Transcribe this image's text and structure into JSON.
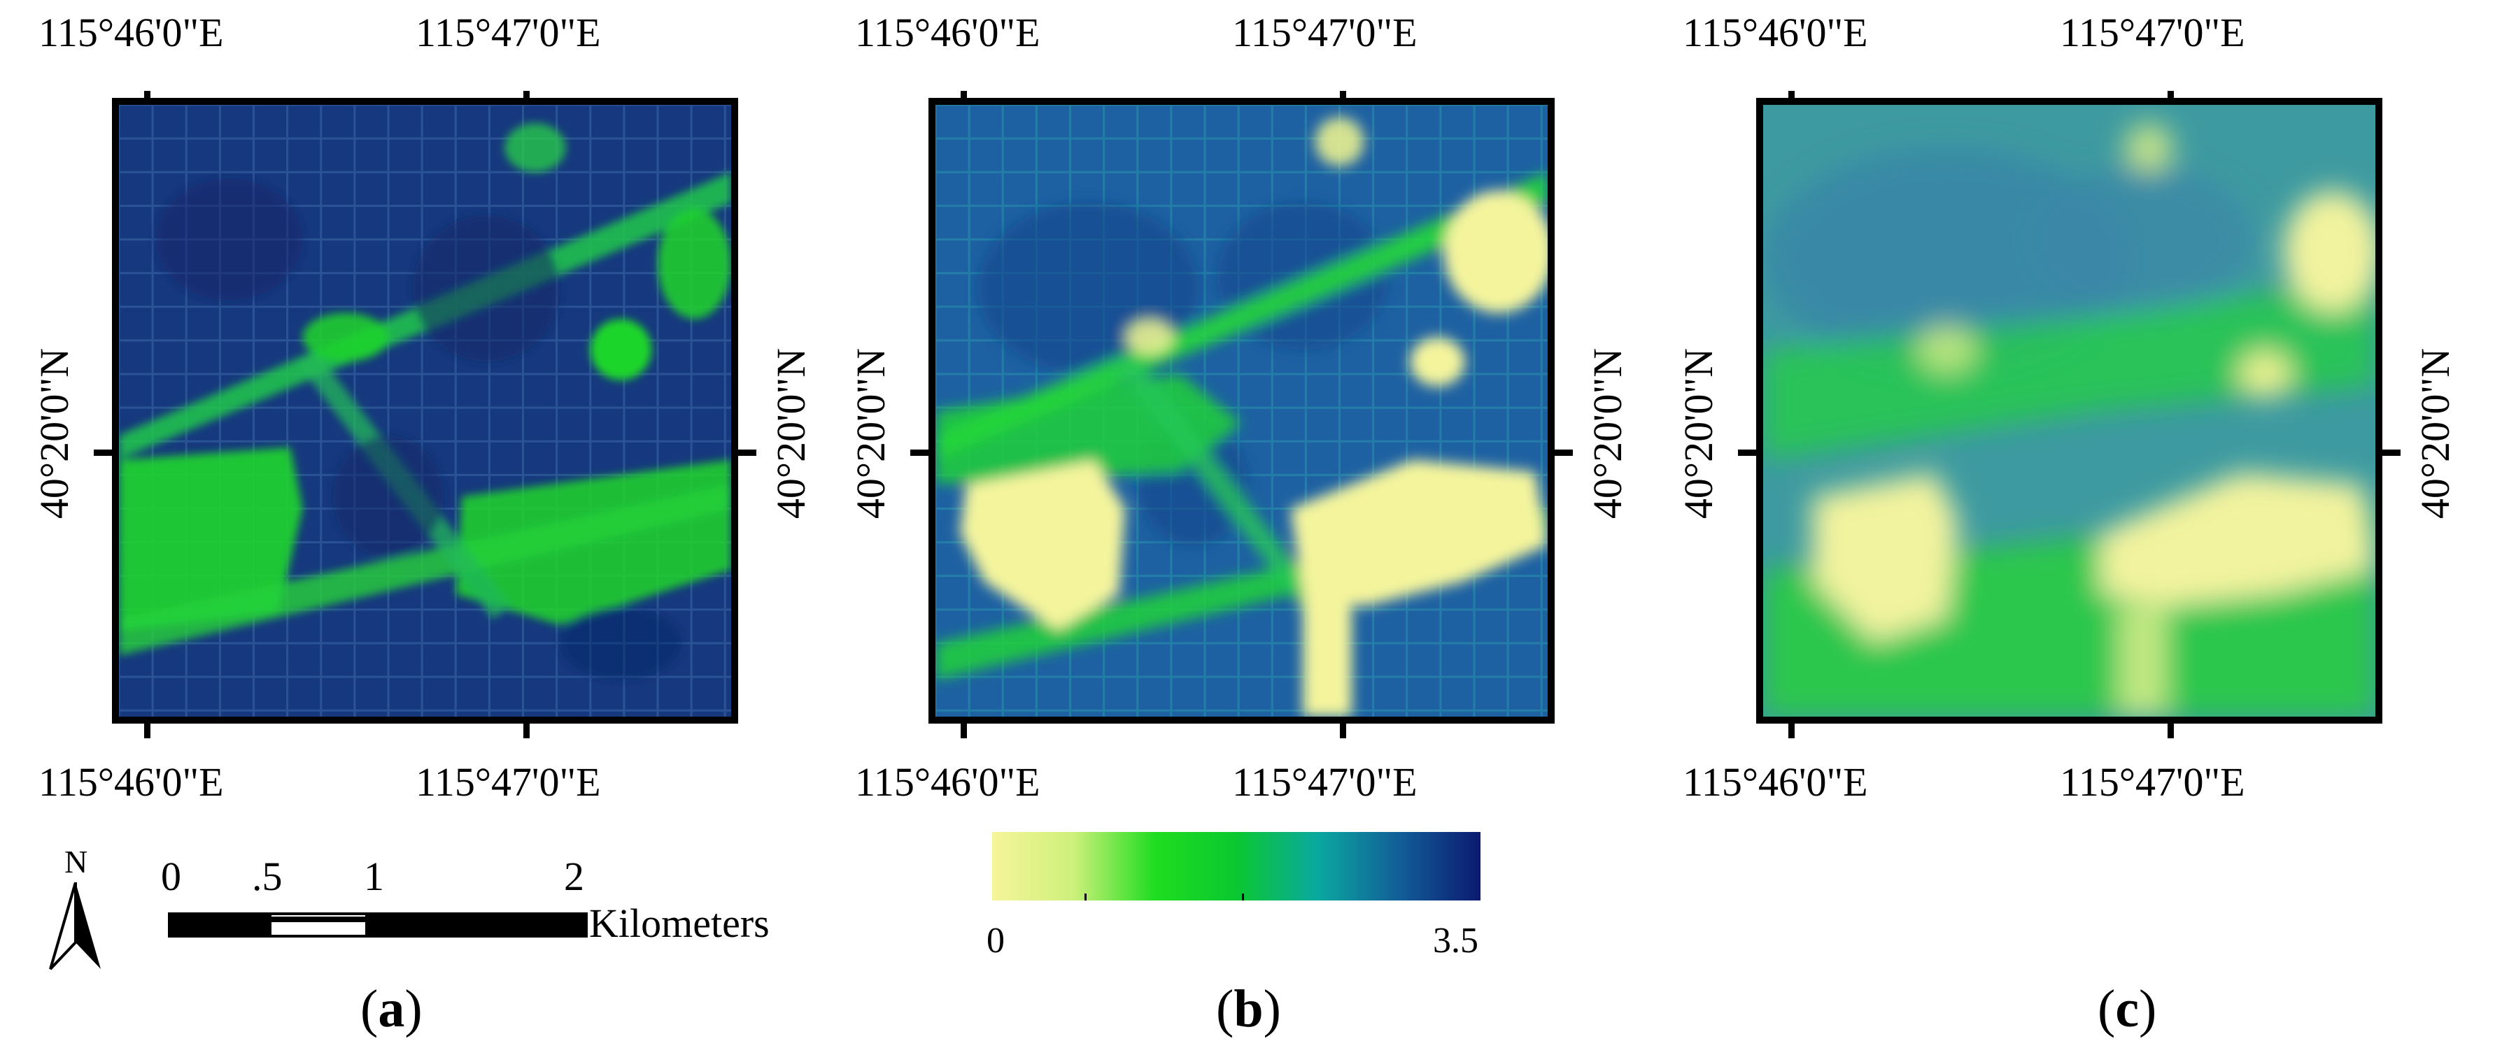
{
  "panels": [
    {
      "id": "a",
      "label": "a",
      "open": "(",
      "close": ")"
    },
    {
      "id": "b",
      "label": "b",
      "open": "(",
      "close": ")"
    },
    {
      "id": "c",
      "label": "c",
      "open": "(",
      "close": ")"
    }
  ],
  "coords": {
    "lon_left": "115°46'0\"E",
    "lon_right": "115°47'0\"E",
    "lat": "40°20'0\"N"
  },
  "scale_bar": {
    "north": "N",
    "ticks": [
      "0",
      ".5",
      "1",
      "2"
    ],
    "unit": "Kilometers"
  },
  "legend": {
    "min": "0",
    "max": "3.5",
    "colors": [
      "#f6f59a",
      "#cdf07a",
      "#1fdd20",
      "#0ac830",
      "#0aa8a0",
      "#125e98",
      "#0c1a70"
    ]
  }
}
